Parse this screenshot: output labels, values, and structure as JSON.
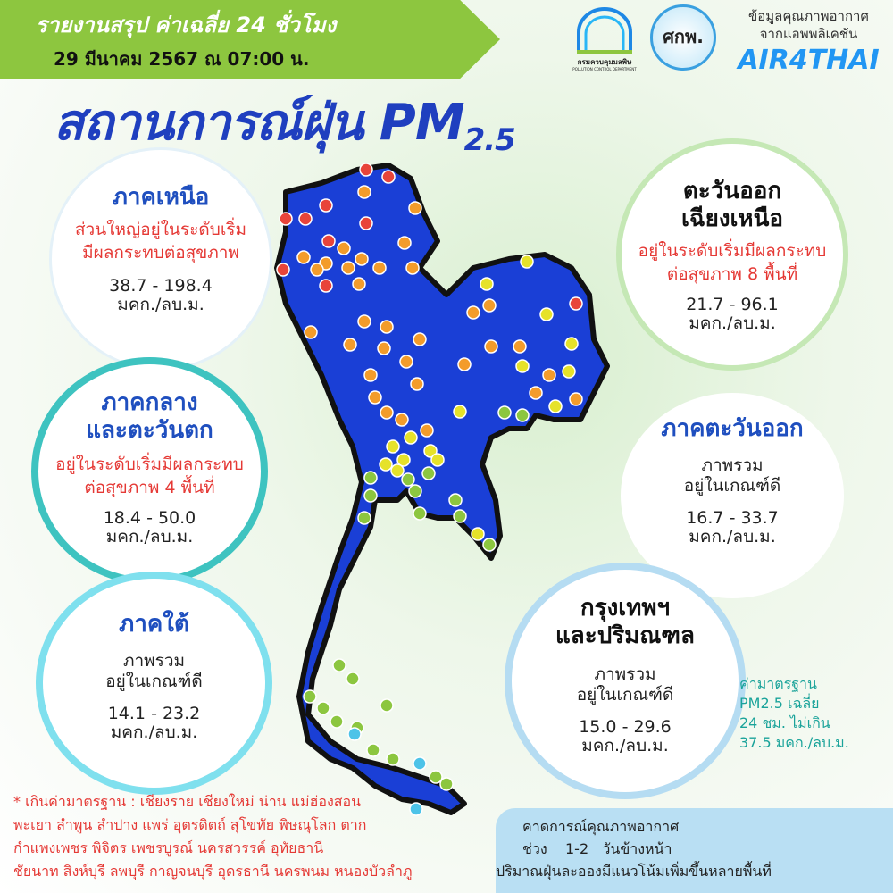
{
  "header": {
    "title": "รายงานสรุป ค่าเฉลี่ย 24 ชั่วโมง",
    "date": "29 มีนาคม 2567 ณ 07:00 น.",
    "main_title": "สถานการณ์ฝุ่น PM",
    "main_sub": "2.5"
  },
  "logos": {
    "pcd": "กรมควบคุมมลพิษ",
    "pcd_en": "POLLUTION CONTROL DEPARTMENT",
    "skp": "ศกพ.",
    "app_line1": "ข้อมูลคุณภาพอากาศ",
    "app_line2": "จากแอพพลิเคชัน",
    "app_name": "AIR4THAI"
  },
  "regions": {
    "north": {
      "name": "ภาคเหนือ",
      "status1": "ส่วนใหญ่อยู่ในระดับเริ่ม",
      "status2": "มีผลกระทบต่อสุขภาพ",
      "range": "38.7 - 198.4",
      "unit": "มคก./ลบ.ม."
    },
    "central": {
      "name1": "ภาคกลาง",
      "name2": "และตะวันตก",
      "status1": "อยู่ในระดับเริ่มมีผลกระทบ",
      "status2": "ต่อสุขภาพ 4 พื้นที่",
      "range": "18.4 - 50.0",
      "unit": "มคก./ลบ.ม."
    },
    "south": {
      "name": "ภาคใต้",
      "status1": "ภาพรวม",
      "status2": "อยู่ในเกณฑ์ดี",
      "range": "14.1 - 23.2",
      "unit": "มคก./ลบ.ม."
    },
    "northeast": {
      "name1": "ตะวันออก",
      "name2": "เฉียงเหนือ",
      "status1": "อยู่ในระดับเริ่มมีผลกระทบ",
      "status2": "ต่อสุขภาพ 8 พื้นที่",
      "range": "21.7 - 96.1",
      "unit": "มคก./ลบ.ม."
    },
    "east": {
      "name": "ภาคตะวันออก",
      "status1": "ภาพรวม",
      "status2": "อยู่ในเกณฑ์ดี",
      "range": "16.7 - 33.7",
      "unit": "มคก./ลบ.ม."
    },
    "bangkok": {
      "name1": "กรุงเทพฯ",
      "name2": "และปริมณฑล",
      "status1": "ภาพรวม",
      "status2": "อยู่ในเกณฑ์ดี",
      "range": "15.0 - 29.6",
      "unit": "มคก./ลบ.ม."
    }
  },
  "standard": {
    "line1": "ค่ามาตรฐาน",
    "line2": "PM2.5 เฉลี่ย",
    "line3": "24 ชม. ไม่เกิน",
    "line4": "37.5 มคก./ลบ.ม."
  },
  "exceed": {
    "line1": "* เกินค่ามาตรฐาน :  เชียงราย เชียงใหม่ น่าน แม่ฮ่องสอน",
    "line2": "พะเยา ลำพูน ลำปาง แพร่ อุตรดิตถ์ สุโขทัย พิษณุโลก ตาก",
    "line3": "กำแพงเพชร พิจิตร เพชรบูรณ์ นครสวรรค์ อุทัยธานี",
    "line4": "ชัยนาท สิงห์บุรี ลพบุรี กาญจนบุรี อุดรธานี นครพนม หนองบัวลำภู"
  },
  "forecast": {
    "line1": "คาดการณ์คุณภาพอากาศ",
    "line2": "ช่วง    1-2   วันข้างหน้า",
    "line3": "ปริมาณฝุ่นละอองมีแนวโน้มเพิ่มขึ้นหลายพื้นที่"
  },
  "colors": {
    "map": "#1a3fd6",
    "very_high": "#e8443a",
    "high": "#f39c2b",
    "moderate": "#e6e22a",
    "good": "#8cc63f",
    "very_good": "#4dc3e8",
    "title": "#1f3fbf",
    "banner": "#8dc63f"
  }
}
